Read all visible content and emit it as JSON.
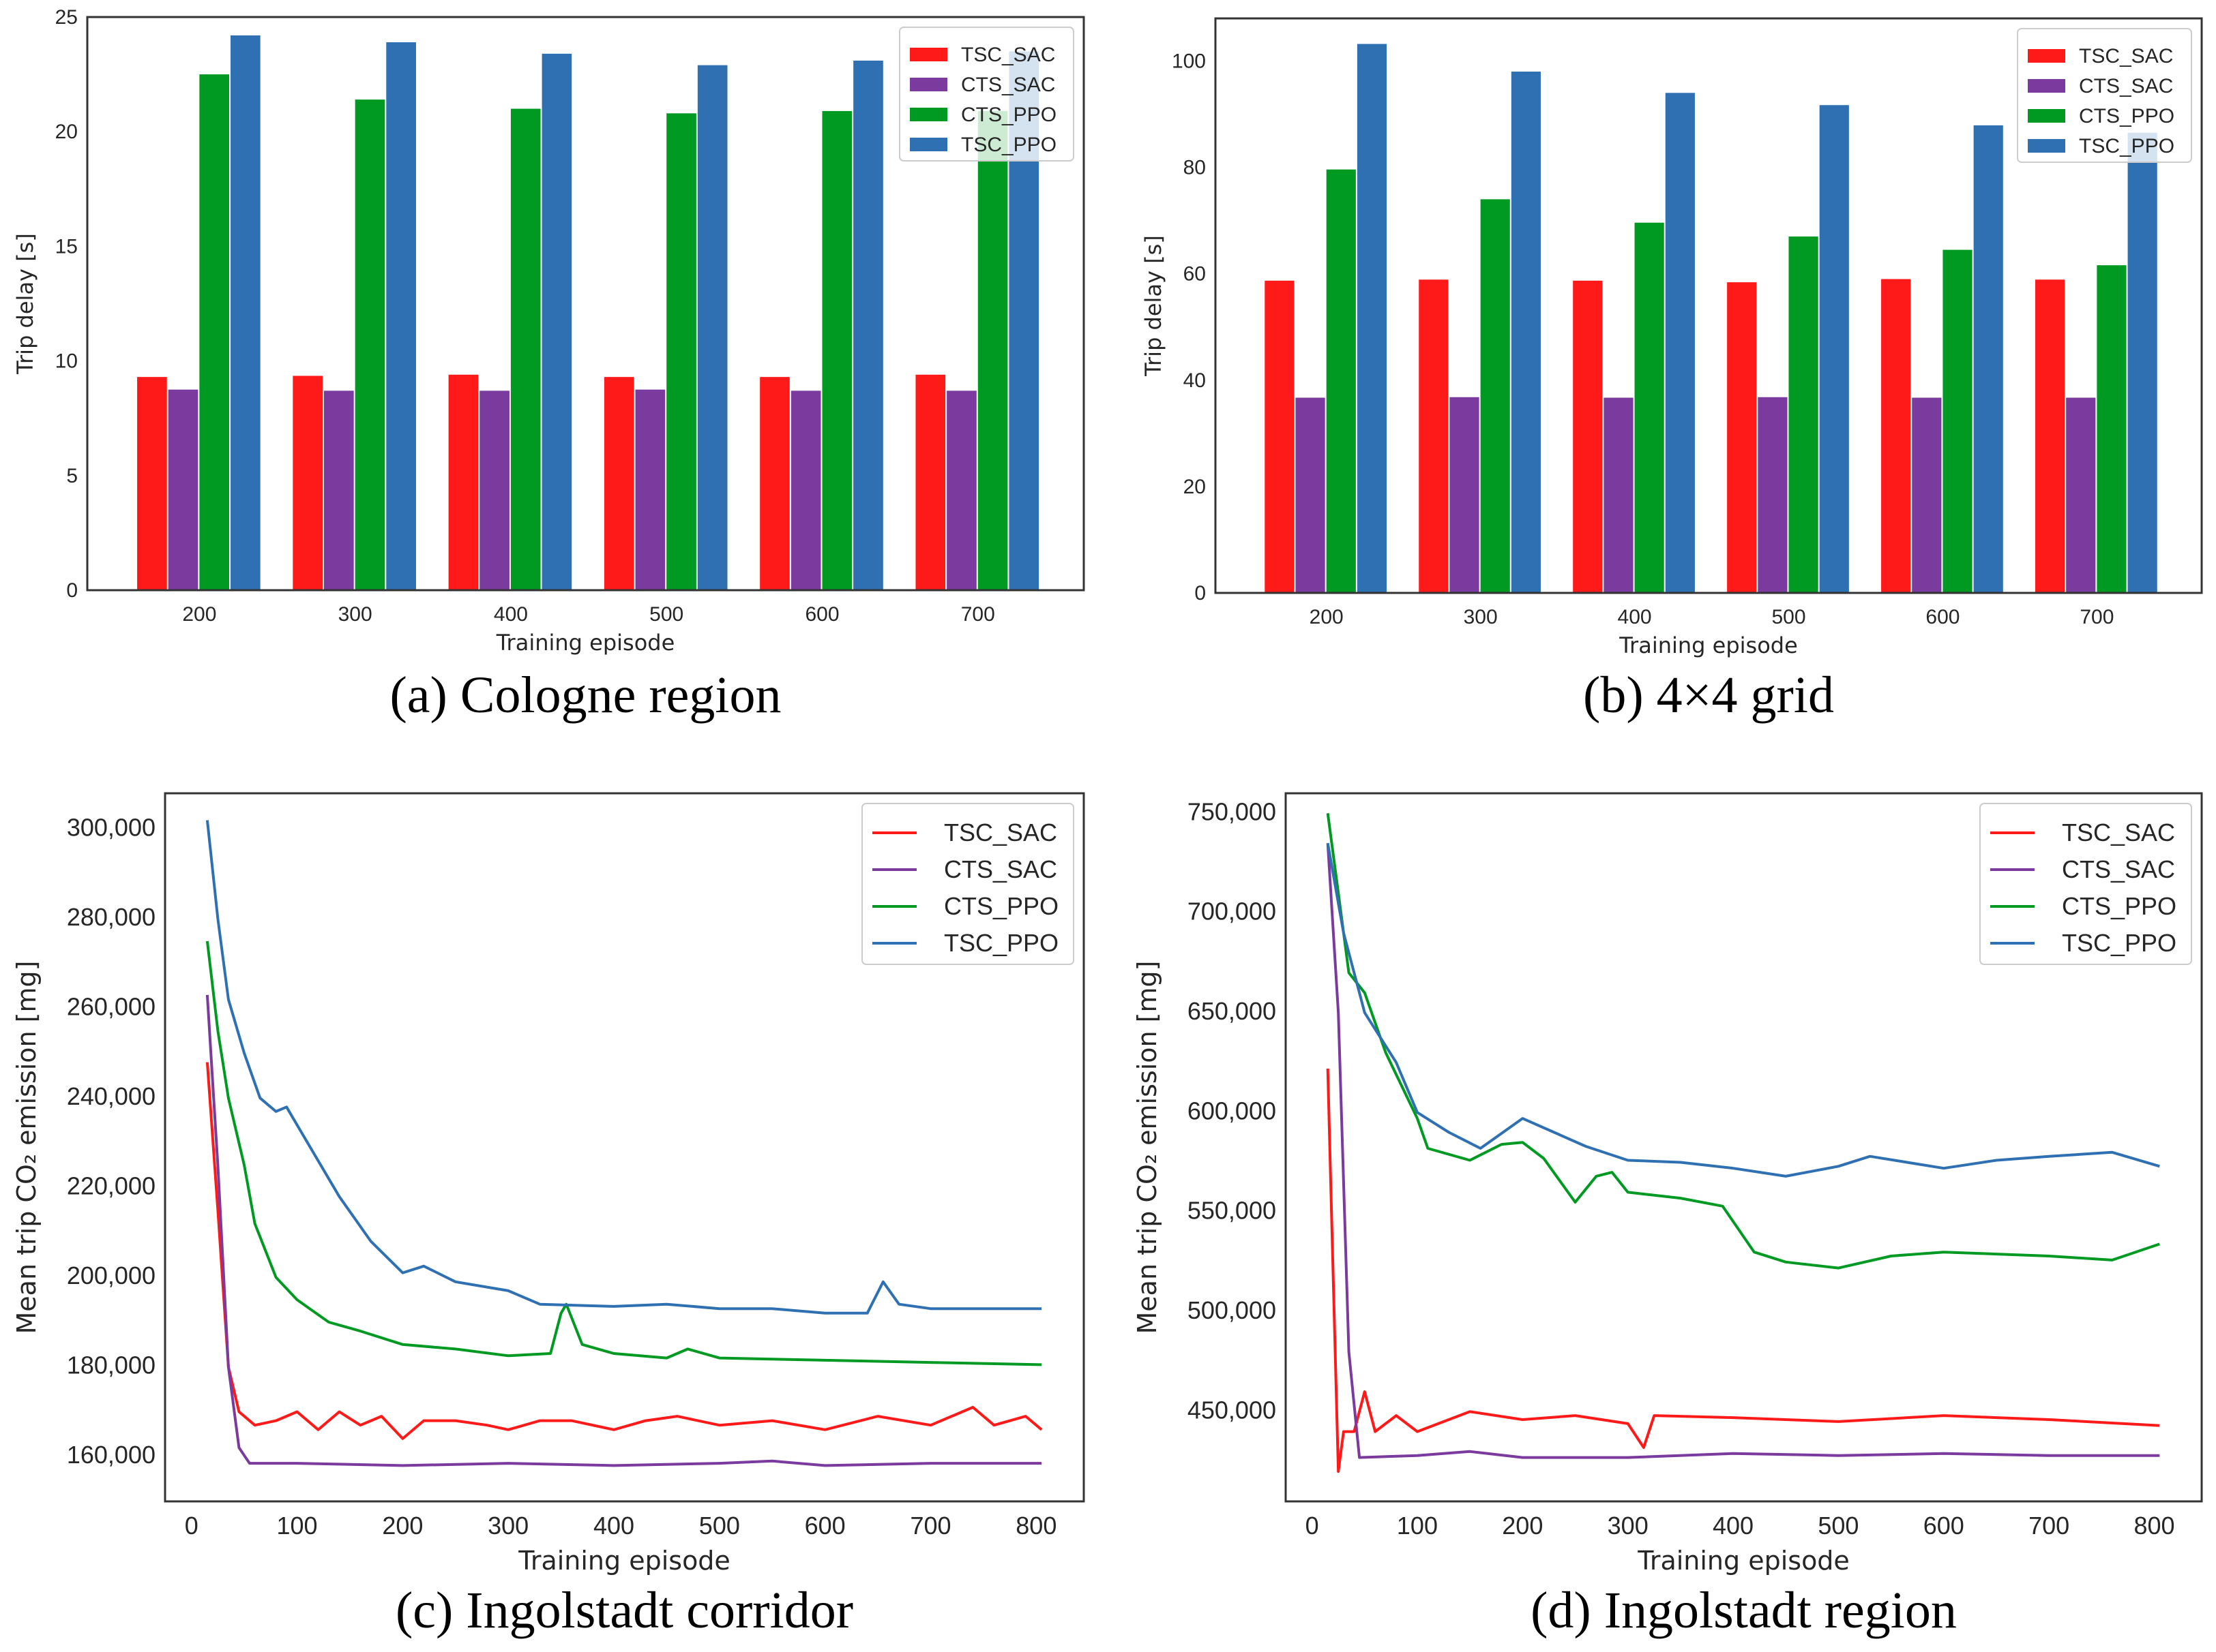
{
  "colors": {
    "TSC_SAC": "#ff1a1a",
    "CTS_SAC": "#7a3a9e",
    "CTS_PPO": "#009a22",
    "TSC_PPO": "#2f70b3"
  },
  "chart_data": [
    {
      "type": "bar",
      "caption": "(a) Cologne region",
      "xlabel": "Training episode",
      "ylabel": "Trip delay [s]",
      "ylim": [
        0,
        25
      ],
      "yticks": [
        "0",
        "5",
        "10",
        "15",
        "20",
        "25"
      ],
      "legend": "top-right",
      "grid": false,
      "categories": [
        "200",
        "300",
        "400",
        "500",
        "600",
        "700"
      ],
      "series": [
        {
          "name": "TSC_SAC",
          "values": [
            9.3,
            9.35,
            9.4,
            9.3,
            9.3,
            9.4
          ]
        },
        {
          "name": "CTS_SAC",
          "values": [
            8.75,
            8.7,
            8.7,
            8.75,
            8.7,
            8.7
          ]
        },
        {
          "name": "CTS_PPO",
          "values": [
            22.5,
            21.4,
            21.0,
            20.8,
            20.9,
            20.9
          ]
        },
        {
          "name": "TSC_PPO",
          "values": [
            24.2,
            23.9,
            23.4,
            22.9,
            23.1,
            23.5
          ]
        }
      ]
    },
    {
      "type": "bar",
      "caption": "(b) 4×4 grid",
      "xlabel": "Training episode",
      "ylabel": "Trip delay [s]",
      "ylim": [
        0,
        108
      ],
      "yticks": [
        "0",
        "20",
        "40",
        "60",
        "80",
        "100"
      ],
      "legend": "top-right",
      "grid": false,
      "categories": [
        "200",
        "300",
        "400",
        "500",
        "600",
        "700"
      ],
      "series": [
        {
          "name": "TSC_SAC",
          "values": [
            58.7,
            58.9,
            58.7,
            58.4,
            59.0,
            58.9
          ]
        },
        {
          "name": "CTS_SAC",
          "values": [
            36.7,
            36.8,
            36.7,
            36.8,
            36.7,
            36.7
          ]
        },
        {
          "name": "CTS_PPO",
          "values": [
            79.6,
            74.0,
            69.6,
            67.0,
            64.5,
            61.6
          ]
        },
        {
          "name": "TSC_PPO",
          "values": [
            103.2,
            98.0,
            94.0,
            91.7,
            87.9,
            86.5
          ]
        }
      ]
    },
    {
      "type": "line",
      "caption": "(c) Ingolstadt corridor",
      "xlabel": "Training episode",
      "ylabel": "Mean trip CO₂ emission [mg]",
      "xlim": [
        -25,
        845
      ],
      "ylim": [
        150000,
        308000
      ],
      "xticks": [
        "0",
        "100",
        "200",
        "300",
        "400",
        "500",
        "600",
        "700",
        "800"
      ],
      "yticks": [
        "160,000",
        "180,000",
        "200,000",
        "220,000",
        "240,000",
        "260,000",
        "280,000",
        "300,000"
      ],
      "legend": "top-right",
      "grid": false,
      "series": [
        {
          "name": "TSC_SAC",
          "points": [
            [
              15,
              248000
            ],
            [
              25,
              215000
            ],
            [
              35,
              180000
            ],
            [
              45,
              170000
            ],
            [
              60,
              167000
            ],
            [
              80,
              168000
            ],
            [
              100,
              170000
            ],
            [
              120,
              166000
            ],
            [
              140,
              170000
            ],
            [
              160,
              167000
            ],
            [
              180,
              169000
            ],
            [
              200,
              164000
            ],
            [
              220,
              168000
            ],
            [
              250,
              168000
            ],
            [
              280,
              167000
            ],
            [
              300,
              166000
            ],
            [
              330,
              168000
            ],
            [
              360,
              168000
            ],
            [
              400,
              166000
            ],
            [
              430,
              168000
            ],
            [
              460,
              169000
            ],
            [
              500,
              167000
            ],
            [
              550,
              168000
            ],
            [
              600,
              166000
            ],
            [
              650,
              169000
            ],
            [
              700,
              167000
            ],
            [
              740,
              171000
            ],
            [
              760,
              167000
            ],
            [
              790,
              169000
            ],
            [
              805,
              166000
            ]
          ]
        },
        {
          "name": "CTS_SAC",
          "points": [
            [
              15,
              263000
            ],
            [
              25,
              225000
            ],
            [
              35,
              180000
            ],
            [
              45,
              162000
            ],
            [
              55,
              158500
            ],
            [
              100,
              158500
            ],
            [
              200,
              158000
            ],
            [
              300,
              158500
            ],
            [
              400,
              158000
            ],
            [
              500,
              158500
            ],
            [
              550,
              159000
            ],
            [
              600,
              158000
            ],
            [
              700,
              158500
            ],
            [
              805,
              158500
            ]
          ]
        },
        {
          "name": "CTS_PPO",
          "points": [
            [
              15,
              275000
            ],
            [
              25,
              255000
            ],
            [
              35,
              240000
            ],
            [
              50,
              225000
            ],
            [
              60,
              212000
            ],
            [
              80,
              200000
            ],
            [
              100,
              195000
            ],
            [
              130,
              190000
            ],
            [
              160,
              188000
            ],
            [
              200,
              185000
            ],
            [
              250,
              184000
            ],
            [
              300,
              182500
            ],
            [
              340,
              183000
            ],
            [
              350,
              192000
            ],
            [
              355,
              194000
            ],
            [
              370,
              185000
            ],
            [
              400,
              183000
            ],
            [
              450,
              182000
            ],
            [
              470,
              184000
            ],
            [
              500,
              182000
            ],
            [
              600,
              181500
            ],
            [
              700,
              181000
            ],
            [
              805,
              180500
            ]
          ]
        },
        {
          "name": "TSC_PPO",
          "points": [
            [
              15,
              302000
            ],
            [
              25,
              280000
            ],
            [
              35,
              262000
            ],
            [
              50,
              250000
            ],
            [
              65,
              240000
            ],
            [
              80,
              237000
            ],
            [
              90,
              238000
            ],
            [
              110,
              230000
            ],
            [
              140,
              218000
            ],
            [
              170,
              208000
            ],
            [
              200,
              201000
            ],
            [
              220,
              202500
            ],
            [
              250,
              199000
            ],
            [
              300,
              197000
            ],
            [
              330,
              194000
            ],
            [
              400,
              193500
            ],
            [
              450,
              194000
            ],
            [
              500,
              193000
            ],
            [
              550,
              193000
            ],
            [
              600,
              192000
            ],
            [
              640,
              192000
            ],
            [
              655,
              199000
            ],
            [
              670,
              194000
            ],
            [
              700,
              193000
            ],
            [
              805,
              193000
            ]
          ]
        }
      ]
    },
    {
      "type": "line",
      "caption": "(d) Ingolstadt region",
      "xlabel": "Training episode",
      "ylabel": "Mean trip CO₂ emission [mg]",
      "xlim": [
        -25,
        845
      ],
      "ylim": [
        405000,
        760000
      ],
      "xticks": [
        "0",
        "100",
        "200",
        "300",
        "400",
        "500",
        "600",
        "700",
        "800"
      ],
      "yticks": [
        "450,000",
        "500,000",
        "550,000",
        "600,000",
        "650,000",
        "700,000",
        "750,000"
      ],
      "legend": "top-right",
      "grid": false,
      "series": [
        {
          "name": "TSC_SAC",
          "points": [
            [
              15,
              622000
            ],
            [
              18,
              560000
            ],
            [
              25,
              420000
            ],
            [
              30,
              440000
            ],
            [
              40,
              440000
            ],
            [
              50,
              460000
            ],
            [
              60,
              440000
            ],
            [
              80,
              448000
            ],
            [
              100,
              440000
            ],
            [
              150,
              450000
            ],
            [
              200,
              446000
            ],
            [
              250,
              448000
            ],
            [
              300,
              444000
            ],
            [
              315,
              432000
            ],
            [
              325,
              448000
            ],
            [
              400,
              447000
            ],
            [
              500,
              445000
            ],
            [
              600,
              448000
            ],
            [
              700,
              446000
            ],
            [
              805,
              443000
            ]
          ]
        },
        {
          "name": "CTS_SAC",
          "points": [
            [
              15,
              735000
            ],
            [
              25,
              650000
            ],
            [
              35,
              480000
            ],
            [
              45,
              427000
            ],
            [
              100,
              428000
            ],
            [
              150,
              430000
            ],
            [
              200,
              427000
            ],
            [
              300,
              427000
            ],
            [
              400,
              429000
            ],
            [
              500,
              428000
            ],
            [
              600,
              429000
            ],
            [
              700,
              428000
            ],
            [
              805,
              428000
            ]
          ]
        },
        {
          "name": "CTS_PPO",
          "points": [
            [
              15,
              750000
            ],
            [
              25,
              710000
            ],
            [
              35,
              670000
            ],
            [
              50,
              660000
            ],
            [
              70,
              630000
            ],
            [
              100,
              597000
            ],
            [
              110,
              582000
            ],
            [
              150,
              576000
            ],
            [
              180,
              584000
            ],
            [
              200,
              585000
            ],
            [
              220,
              577000
            ],
            [
              250,
              555000
            ],
            [
              270,
              568000
            ],
            [
              285,
              570000
            ],
            [
              300,
              560000
            ],
            [
              350,
              557000
            ],
            [
              390,
              553000
            ],
            [
              420,
              530000
            ],
            [
              450,
              525000
            ],
            [
              500,
              522000
            ],
            [
              550,
              528000
            ],
            [
              600,
              530000
            ],
            [
              700,
              528000
            ],
            [
              760,
              526000
            ],
            [
              805,
              534000
            ]
          ]
        },
        {
          "name": "TSC_PPO",
          "points": [
            [
              15,
              735000
            ],
            [
              30,
              690000
            ],
            [
              50,
              650000
            ],
            [
              80,
              625000
            ],
            [
              100,
              600000
            ],
            [
              130,
              590000
            ],
            [
              160,
              582000
            ],
            [
              200,
              597000
            ],
            [
              230,
              590000
            ],
            [
              260,
              583000
            ],
            [
              300,
              576000
            ],
            [
              350,
              575000
            ],
            [
              400,
              572000
            ],
            [
              450,
              568000
            ],
            [
              500,
              573000
            ],
            [
              530,
              578000
            ],
            [
              600,
              572000
            ],
            [
              650,
              576000
            ],
            [
              700,
              578000
            ],
            [
              760,
              580000
            ],
            [
              805,
              573000
            ]
          ]
        }
      ]
    }
  ]
}
